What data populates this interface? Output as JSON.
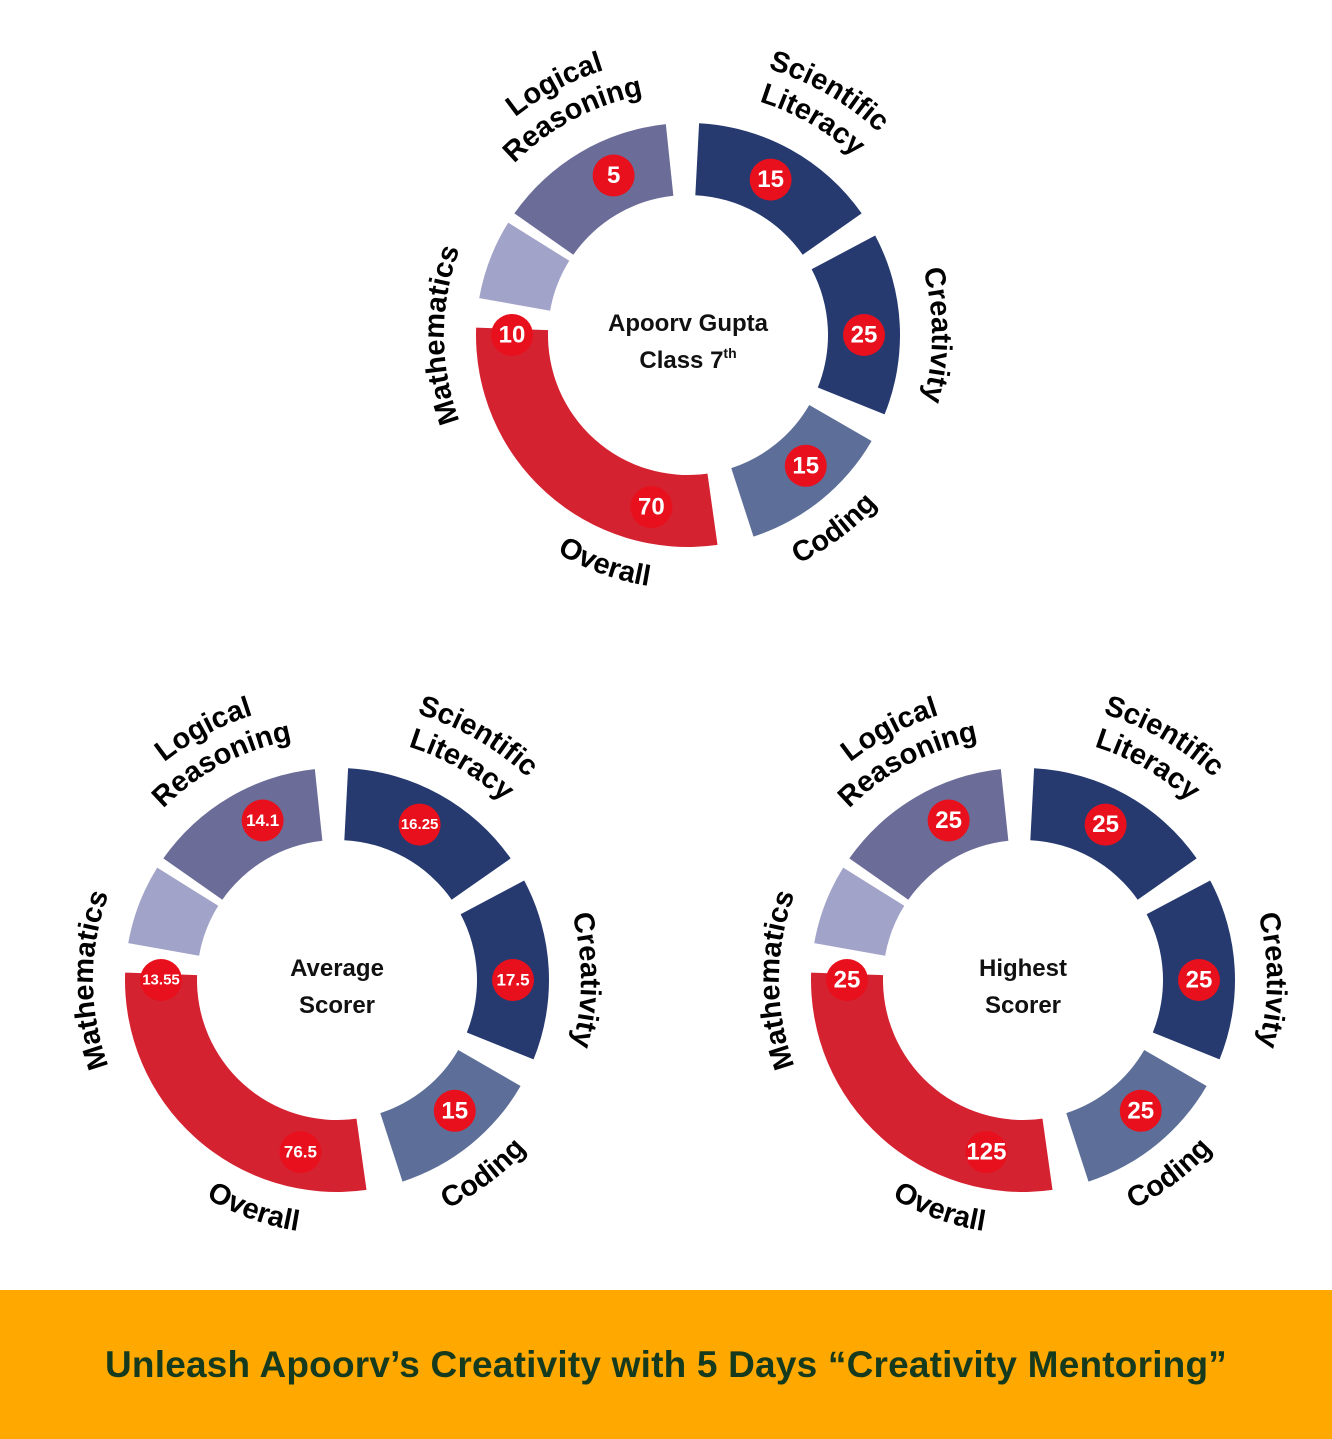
{
  "colors": {
    "logical": "#6b6d98",
    "scientific": "#263a70",
    "creativity": "#263a70",
    "coding": "#5d6f98",
    "overall": "#d52231",
    "mathematics": "#a2a3c9",
    "badge": "#e8101c",
    "banner_bg": "#ffa800",
    "banner_text": "#163a1d"
  },
  "charts": [
    {
      "center_line1": "Apoorv Gupta",
      "center_line2": "Class 7",
      "center_sup": "th",
      "segments": [
        {
          "key": "logical",
          "label": [
            "Logical",
            "Reasoning"
          ],
          "value": "5"
        },
        {
          "key": "scientific",
          "label": [
            "Scientific",
            "Literacy"
          ],
          "value": "15"
        },
        {
          "key": "creativity",
          "label": [
            "Creativity"
          ],
          "value": "25"
        },
        {
          "key": "coding",
          "label": [
            "Coding"
          ],
          "value": "15"
        },
        {
          "key": "overall",
          "label": [
            "Overall"
          ],
          "value": "70"
        },
        {
          "key": "mathematics",
          "label": [
            "Mathematics"
          ],
          "value": "10"
        }
      ]
    },
    {
      "center_line1": "Average",
      "center_line2": "Scorer",
      "center_sup": "",
      "segments": [
        {
          "key": "logical",
          "label": [
            "Logical",
            "Reasoning"
          ],
          "value": "14.1"
        },
        {
          "key": "scientific",
          "label": [
            "Scientific",
            "Literacy"
          ],
          "value": "16.25"
        },
        {
          "key": "creativity",
          "label": [
            "Creativity"
          ],
          "value": "17.5"
        },
        {
          "key": "coding",
          "label": [
            "Coding"
          ],
          "value": "15"
        },
        {
          "key": "overall",
          "label": [
            "Overall"
          ],
          "value": "76.5"
        },
        {
          "key": "mathematics",
          "label": [
            "Mathematics"
          ],
          "value": "13.55"
        }
      ]
    },
    {
      "center_line1": "Highest",
      "center_line2": "Scorer",
      "center_sup": "",
      "segments": [
        {
          "key": "logical",
          "label": [
            "Logical",
            "Reasoning"
          ],
          "value": "25"
        },
        {
          "key": "scientific",
          "label": [
            "Scientific",
            "Literacy"
          ],
          "value": "25"
        },
        {
          "key": "creativity",
          "label": [
            "Creativity"
          ],
          "value": "25"
        },
        {
          "key": "coding",
          "label": [
            "Coding"
          ],
          "value": "25"
        },
        {
          "key": "overall",
          "label": [
            "Overall"
          ],
          "value": "125"
        },
        {
          "key": "mathematics",
          "label": [
            "Mathematics"
          ],
          "value": "25"
        }
      ]
    }
  ],
  "banner": {
    "text": "Unleash Apoorv’s Creativity with 5 Days “Creativity Mentoring”"
  }
}
